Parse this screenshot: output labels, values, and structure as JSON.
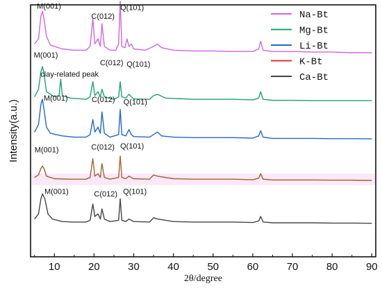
{
  "chart_data": {
    "type": "line",
    "xlabel": "2θ/degree",
    "ylabel": "Intensity(a.u.)",
    "xlim": [
      4,
      91
    ],
    "ylim": [
      0,
      100
    ],
    "x_ticks": [
      "10",
      "20",
      "30",
      "40",
      "50",
      "60",
      "70",
      "80",
      "90"
    ],
    "x_tick_values": [
      10,
      20,
      30,
      40,
      50,
      60,
      70,
      80,
      90
    ],
    "grid": false,
    "legend_position": "top-right",
    "series": [
      {
        "name": "Na-Bt",
        "color": "#CC66DD",
        "baseline": 80.5,
        "x": [
          5,
          6,
          6.6,
          7,
          7.4,
          8,
          9,
          12,
          15,
          18,
          19,
          19.7,
          20.2,
          21,
          21.6,
          22,
          22.6,
          24,
          25.5,
          26.2,
          26.6,
          27,
          27.8,
          28.3,
          28.8,
          29.4,
          30,
          33,
          35,
          36,
          37,
          40,
          45,
          50,
          55,
          60,
          61.5,
          62,
          62.6,
          65,
          70,
          75,
          80,
          85,
          90
        ],
        "y": [
          4,
          6,
          15,
          17,
          14,
          7,
          3.5,
          2,
          1.5,
          1.5,
          3,
          14,
          4,
          6,
          3,
          12,
          3,
          1.5,
          1.5,
          4,
          21,
          3,
          2.5,
          6,
          3,
          4,
          2,
          1.5,
          3,
          4,
          2.5,
          1.5,
          1.2,
          1.2,
          1,
          1,
          2,
          5,
          1.5,
          1,
          1,
          0.8,
          0.8,
          0.5,
          0.5
        ]
      },
      {
        "name": "Mg-Bt",
        "color": "#1EA06F",
        "baseline": 61.5,
        "x": [
          5,
          6,
          6.6,
          7,
          7.4,
          8,
          10,
          11.2,
          11.6,
          12,
          14,
          18,
          19,
          19.7,
          20.2,
          21,
          21.6,
          22,
          22.6,
          25,
          26.2,
          26.6,
          27,
          28,
          28.8,
          29.4,
          30,
          34,
          35,
          36,
          38,
          45,
          50,
          55,
          60,
          61.5,
          62,
          62.6,
          65,
          70,
          75,
          80,
          85,
          90
        ],
        "y": [
          2,
          5,
          12,
          14,
          11,
          4,
          2,
          2.5,
          9,
          2.5,
          1.5,
          1,
          2,
          8,
          2.5,
          4,
          2,
          5,
          2,
          1,
          2,
          8,
          2,
          1.5,
          3,
          2,
          1.2,
          1,
          2.5,
          3,
          1.5,
          1,
          1,
          1,
          0.8,
          1.5,
          4,
          1,
          0.6,
          0.6,
          0.5,
          0.5,
          0.5,
          0.5
        ]
      },
      {
        "name": "Li-Bt",
        "color": "#2266CC",
        "baseline": 46.5,
        "x": [
          5,
          6,
          6.6,
          7,
          7.4,
          8,
          9,
          12,
          15,
          18,
          19,
          19.7,
          20.2,
          21,
          21.6,
          22,
          22.6,
          24,
          26.2,
          26.6,
          27,
          28,
          28.8,
          29.4,
          30,
          34,
          35,
          36,
          37,
          40,
          45,
          50,
          55,
          60,
          61.5,
          62,
          62.6,
          65,
          70,
          75,
          80,
          85,
          90
        ],
        "y": [
          3,
          6,
          14,
          16,
          12,
          5,
          2.5,
          1.5,
          1,
          1,
          2,
          8,
          3,
          5,
          2.5,
          11,
          2.5,
          1,
          2,
          12,
          2,
          1.5,
          4,
          2,
          1.2,
          1,
          2,
          3,
          1.5,
          1,
          0.8,
          0.8,
          0.8,
          0.6,
          1.5,
          3.5,
          1,
          0.5,
          0.5,
          0.5,
          0.4,
          0.4,
          0.3
        ]
      },
      {
        "name": "K-Bt",
        "color": "#A0622E",
        "baseline": 30.0,
        "x": [
          5,
          6,
          6.6,
          7,
          7.4,
          8,
          10,
          14,
          18,
          19,
          19.7,
          20.2,
          21,
          21.6,
          22,
          22.6,
          24,
          26.2,
          26.6,
          27,
          28,
          28.8,
          29.4,
          30,
          34,
          35,
          36,
          40,
          45,
          50,
          55,
          60,
          61.5,
          62,
          62.6,
          65,
          70,
          75,
          80,
          85,
          90
        ],
        "y": [
          1.5,
          2.5,
          5,
          6,
          5,
          2,
          1,
          0.8,
          0.8,
          1.5,
          9,
          2,
          3,
          1.5,
          7,
          1.5,
          0.8,
          1.5,
          10,
          1.5,
          1,
          2,
          1.5,
          1,
          0.8,
          2.5,
          2,
          1,
          0.8,
          0.8,
          0.8,
          0.6,
          1.2,
          3,
          0.8,
          0.5,
          0.5,
          0.5,
          0.4,
          0.4,
          0.3
        ]
      },
      {
        "name": "Ca-Bt",
        "color": "#444444",
        "baseline": 13.0,
        "x": [
          5,
          6,
          6.6,
          7,
          7.6,
          8.4,
          9.5,
          12,
          15,
          18,
          19,
          19.7,
          20.2,
          21,
          21.6,
          22,
          22.6,
          24,
          26.2,
          26.6,
          27,
          28,
          28.8,
          29.4,
          30,
          34,
          35,
          36,
          40,
          45,
          50,
          55,
          60,
          61.5,
          62,
          62.6,
          65,
          70,
          75,
          80,
          85,
          90
        ],
        "y": [
          2,
          4,
          10,
          12,
          10,
          4,
          2,
          1,
          0.8,
          0.8,
          1.5,
          8,
          3,
          4,
          2,
          6,
          2,
          1,
          1.5,
          10,
          1.5,
          1,
          2,
          1.5,
          1,
          0.8,
          2.5,
          2,
          1,
          0.8,
          0.8,
          0.8,
          0.6,
          1.2,
          3,
          0.8,
          0.5,
          0.5,
          0.5,
          0.4,
          0.4,
          0.3
        ]
      }
    ],
    "annotations": [
      {
        "text": "M(001)",
        "x": 5.6,
        "y": 98.5
      },
      {
        "text": "C(012)",
        "x": 19.3,
        "y": 94.5
      },
      {
        "text": "Q(101)",
        "x": 26.6,
        "y": 98
      },
      {
        "text": "M(001)",
        "x": 4.8,
        "y": 79
      },
      {
        "text": "C(012)",
        "x": 21.5,
        "y": 76
      },
      {
        "text": "Q(101)",
        "x": 28.2,
        "y": 75.5
      },
      {
        "text": "clay-related peak",
        "x": 6.5,
        "y": 71.5
      },
      {
        "text": "M(001)",
        "x": 7.3,
        "y": 62
      },
      {
        "text": "C(012)",
        "x": 19.4,
        "y": 61.5
      },
      {
        "text": "Q(101)",
        "x": 27.4,
        "y": 60.5
      },
      {
        "text": "M(001)",
        "x": 5.0,
        "y": 41.5
      },
      {
        "text": "C(012)",
        "x": 19.3,
        "y": 42.5
      },
      {
        "text": "Q(101)",
        "x": 26.6,
        "y": 43
      },
      {
        "text": "M(001)",
        "x": 7.5,
        "y": 25
      },
      {
        "text": "C(012)",
        "x": 20.0,
        "y": 24
      },
      {
        "text": "Q(101)",
        "x": 27.3,
        "y": 25
      }
    ]
  }
}
